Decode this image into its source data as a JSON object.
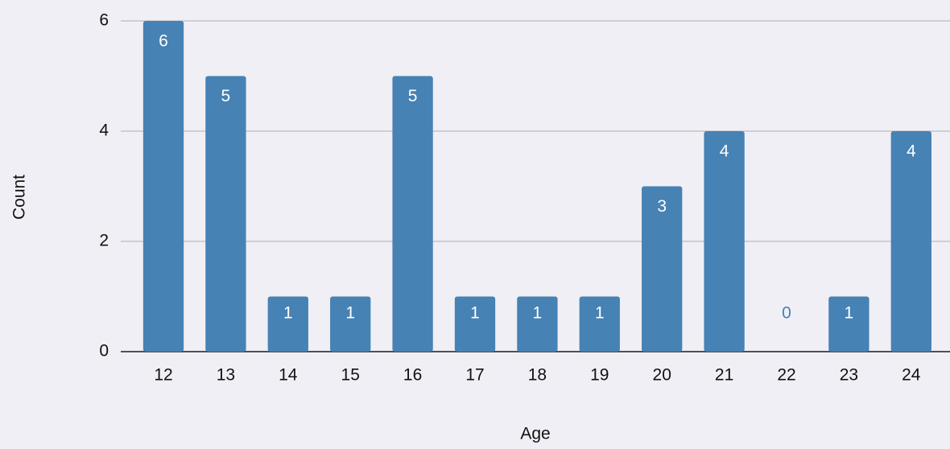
{
  "chart_data": {
    "type": "bar",
    "x_label": "Age",
    "y_label": "Count",
    "categories": [
      "12",
      "13",
      "14",
      "15",
      "16",
      "17",
      "18",
      "19",
      "20",
      "21",
      "22",
      "23",
      "24"
    ],
    "values": [
      6,
      5,
      1,
      1,
      5,
      1,
      1,
      1,
      3,
      4,
      0,
      1,
      4
    ],
    "color": "#4682b4",
    "ylim": [
      0,
      6
    ],
    "yticks": [
      0,
      2,
      4,
      6
    ],
    "grid": true
  }
}
